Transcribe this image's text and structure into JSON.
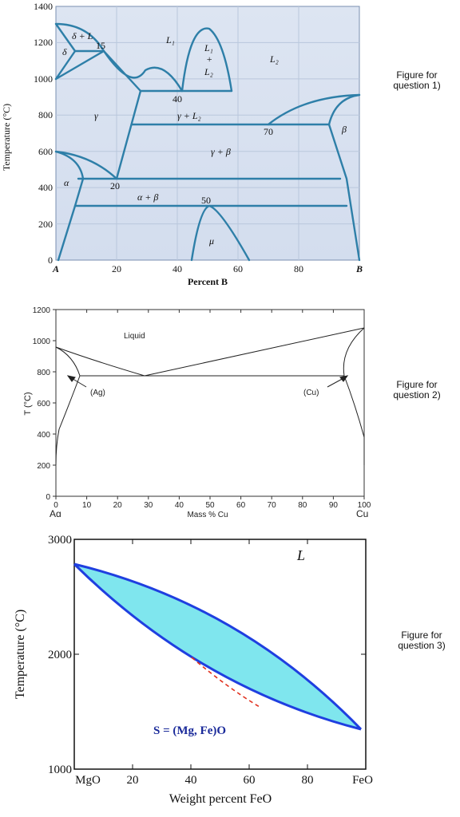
{
  "figures": [
    {
      "caption": [
        "Figure for",
        "question 1)"
      ],
      "y_label": "Temperature (°C)",
      "x_label": "Percent B",
      "y_ticks": [
        "0",
        "200",
        "400",
        "600",
        "800",
        "1000",
        "1200",
        "1400"
      ],
      "x_ticks": [
        "A",
        "20",
        "40",
        "60",
        "80",
        "B"
      ],
      "regions": {
        "delta_L": "δ + L",
        "delta": "δ",
        "L1": "L₁",
        "L1_L2": [
          "L₁",
          "+",
          "L₂"
        ],
        "L2": "L₂",
        "gamma": "γ",
        "gamma_L2": "γ + L₂",
        "beta": "β",
        "gamma_beta": "γ + β",
        "alpha": "α",
        "alpha_beta": "α + β",
        "mu": "μ"
      },
      "invariant_labels": [
        "15",
        "40",
        "70",
        "20",
        "50"
      ]
    },
    {
      "caption": [
        "Figure for",
        "question 2)"
      ],
      "y_label": "T (°C)",
      "x_label": "Mass % Cu",
      "y_ticks": [
        "0",
        "200",
        "400",
        "600",
        "800",
        "1000",
        "1200"
      ],
      "x_ticks": [
        "0",
        "10",
        "20",
        "30",
        "40",
        "50",
        "60",
        "70",
        "80",
        "90",
        "100"
      ],
      "end_labels": [
        "Ag",
        "Cu"
      ],
      "regions": {
        "liquid": "Liquid",
        "ag": "(Ag)",
        "cu": "(Cu)"
      }
    },
    {
      "caption": [
        "Figure for",
        "question 3)"
      ],
      "y_label": "Temperature (°C)",
      "x_label": "Weight percent FeO",
      "y_ticks": [
        "1000",
        "2000",
        "3000"
      ],
      "x_ticks": [
        "MgO",
        "20",
        "40",
        "60",
        "80",
        "FeO"
      ],
      "regions": {
        "liquid": "L",
        "solid": "S = (Mg, Fe)O"
      },
      "colors": {
        "fill": "#7fe6ee",
        "curve": "#1f3fe0",
        "dashed": "#e0301e"
      }
    }
  ]
}
